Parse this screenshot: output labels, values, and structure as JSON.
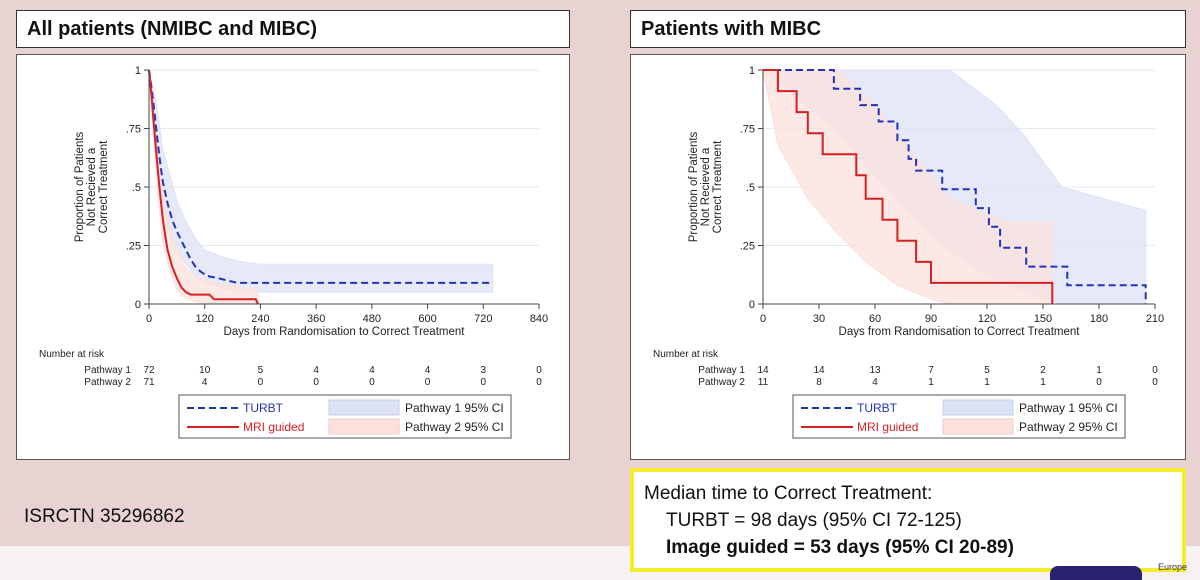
{
  "isrctn": "ISRCTN 35296862",
  "median": {
    "heading": "Median time to Correct Treatment:",
    "turbt": "TURBT = 98 days (95% CI 72-125)",
    "image_guided": "Image guided = 53 days (95% CI 20-89)"
  },
  "logo_text": "Europe",
  "colors": {
    "turbt": "#2233bb",
    "mri": "#d42020",
    "ci1": "#dde2f6",
    "ci2": "#fbe0dc"
  },
  "chart_data": [
    {
      "type": "line",
      "title": "All patients (NMIBC and MIBC)",
      "xlabel": "Days from Randomisation to Correct Treatment",
      "ylabel_lines": [
        "Proportion of Patients",
        "Not Recieved a",
        "Correct Treatment"
      ],
      "xlim": [
        0,
        840
      ],
      "ylim": [
        0,
        1
      ],
      "xticks": [
        0,
        120,
        240,
        360,
        480,
        600,
        720,
        840
      ],
      "yticks": [
        {
          "v": 0,
          "label": "0"
        },
        {
          "v": 0.25,
          "label": ".25"
        },
        {
          "v": 0.5,
          "label": ".5"
        },
        {
          "v": 0.75,
          "label": ".75"
        },
        {
          "v": 1,
          "label": "1"
        }
      ],
      "grid": true,
      "series": [
        {
          "name": "TURBT",
          "style": "dashed",
          "color": "#2233bb",
          "points": [
            [
              0,
              1
            ],
            [
              5,
              0.93
            ],
            [
              10,
              0.85
            ],
            [
              15,
              0.76
            ],
            [
              20,
              0.67
            ],
            [
              25,
              0.59
            ],
            [
              30,
              0.52
            ],
            [
              40,
              0.43
            ],
            [
              50,
              0.36
            ],
            [
              60,
              0.31
            ],
            [
              70,
              0.27
            ],
            [
              80,
              0.23
            ],
            [
              90,
              0.19
            ],
            [
              100,
              0.16
            ],
            [
              110,
              0.14
            ],
            [
              125,
              0.12
            ],
            [
              150,
              0.11
            ],
            [
              170,
              0.1
            ],
            [
              190,
              0.09
            ],
            [
              240,
              0.09
            ],
            [
              360,
              0.09
            ],
            [
              480,
              0.09
            ],
            [
              600,
              0.09
            ],
            [
              725,
              0.09
            ],
            [
              740,
              0.09
            ]
          ]
        },
        {
          "name": "MRI guided",
          "style": "solid",
          "color": "#d42020",
          "points": [
            [
              0,
              1
            ],
            [
              5,
              0.9
            ],
            [
              10,
              0.78
            ],
            [
              15,
              0.66
            ],
            [
              20,
              0.55
            ],
            [
              25,
              0.45
            ],
            [
              30,
              0.36
            ],
            [
              35,
              0.29
            ],
            [
              40,
              0.23
            ],
            [
              50,
              0.16
            ],
            [
              60,
              0.11
            ],
            [
              70,
              0.07
            ],
            [
              80,
              0.05
            ],
            [
              90,
              0.04
            ],
            [
              130,
              0.04
            ],
            [
              140,
              0.02
            ],
            [
              230,
              0.02
            ],
            [
              235,
              0
            ]
          ]
        }
      ],
      "ci_bands": [
        {
          "name": "Pathway 1 95% CI",
          "color": "#dde2f6",
          "upper": [
            [
              0,
              1
            ],
            [
              10,
              0.92
            ],
            [
              20,
              0.8
            ],
            [
              30,
              0.66
            ],
            [
              45,
              0.55
            ],
            [
              60,
              0.44
            ],
            [
              80,
              0.35
            ],
            [
              100,
              0.28
            ],
            [
              120,
              0.23
            ],
            [
              160,
              0.2
            ],
            [
              200,
              0.18
            ],
            [
              240,
              0.17
            ],
            [
              740,
              0.17
            ]
          ],
          "lower": [
            [
              0,
              1
            ],
            [
              10,
              0.78
            ],
            [
              20,
              0.56
            ],
            [
              30,
              0.4
            ],
            [
              45,
              0.3
            ],
            [
              60,
              0.23
            ],
            [
              80,
              0.17
            ],
            [
              100,
              0.12
            ],
            [
              120,
              0.09
            ],
            [
              160,
              0.07
            ],
            [
              200,
              0.05
            ],
            [
              240,
              0.05
            ],
            [
              740,
              0.05
            ]
          ]
        },
        {
          "name": "Pathway 2 95% CI",
          "color": "#fbe0dc",
          "upper": [
            [
              0,
              1
            ],
            [
              10,
              0.86
            ],
            [
              20,
              0.66
            ],
            [
              30,
              0.48
            ],
            [
              45,
              0.34
            ],
            [
              60,
              0.23
            ],
            [
              80,
              0.15
            ],
            [
              100,
              0.12
            ],
            [
              140,
              0.09
            ],
            [
              235,
              0.06
            ]
          ],
          "lower": [
            [
              0,
              1
            ],
            [
              10,
              0.7
            ],
            [
              20,
              0.45
            ],
            [
              30,
              0.26
            ],
            [
              45,
              0.14
            ],
            [
              60,
              0.06
            ],
            [
              80,
              0.02
            ],
            [
              100,
              0.01
            ],
            [
              140,
              0
            ],
            [
              235,
              0
            ]
          ]
        }
      ],
      "risk_table": {
        "title": "Number at risk",
        "rows": [
          {
            "label": "Pathway 1",
            "values": [
              "72",
              "10",
              "5",
              "4",
              "4",
              "4",
              "3",
              "0"
            ]
          },
          {
            "label": "Pathway 2",
            "values": [
              "71",
              "4",
              "0",
              "0",
              "0",
              "0",
              "0",
              "0"
            ]
          }
        ]
      },
      "legend": [
        "TURBT",
        "MRI guided",
        "Pathway 1 95% CI",
        "Pathway 2 95% CI"
      ]
    },
    {
      "type": "line",
      "title": "Patients with MIBC",
      "xlabel": "Days from Randomisation to Correct Treatment",
      "ylabel_lines": [
        "Proportion of Patients",
        "Not Recieved a",
        "Correct Treatment"
      ],
      "xlim": [
        0,
        210
      ],
      "ylim": [
        0,
        1
      ],
      "xticks": [
        0,
        30,
        60,
        90,
        120,
        150,
        180,
        210
      ],
      "yticks": [
        {
          "v": 0,
          "label": "0"
        },
        {
          "v": 0.25,
          "label": ".25"
        },
        {
          "v": 0.5,
          "label": ".5"
        },
        {
          "v": 0.75,
          "label": ".75"
        },
        {
          "v": 1,
          "label": "1"
        }
      ],
      "grid": true,
      "series": [
        {
          "name": "TURBT",
          "style": "dashed",
          "color": "#2233bb",
          "points": [
            [
              0,
              1
            ],
            [
              38,
              1
            ],
            [
              38,
              0.92
            ],
            [
              52,
              0.92
            ],
            [
              52,
              0.85
            ],
            [
              62,
              0.85
            ],
            [
              62,
              0.78
            ],
            [
              72,
              0.78
            ],
            [
              72,
              0.7
            ],
            [
              78,
              0.7
            ],
            [
              78,
              0.62
            ],
            [
              82,
              0.62
            ],
            [
              82,
              0.57
            ],
            [
              96,
              0.57
            ],
            [
              96,
              0.49
            ],
            [
              114,
              0.49
            ],
            [
              114,
              0.41
            ],
            [
              121,
              0.41
            ],
            [
              121,
              0.33
            ],
            [
              127,
              0.33
            ],
            [
              127,
              0.24
            ],
            [
              141,
              0.24
            ],
            [
              141,
              0.16
            ],
            [
              163,
              0.16
            ],
            [
              163,
              0.08
            ],
            [
              205,
              0.08
            ],
            [
              205,
              0
            ]
          ]
        },
        {
          "name": "MRI guided",
          "style": "solid",
          "color": "#d42020",
          "points": [
            [
              0,
              1
            ],
            [
              8,
              1
            ],
            [
              8,
              0.91
            ],
            [
              18,
              0.91
            ],
            [
              18,
              0.82
            ],
            [
              24,
              0.82
            ],
            [
              24,
              0.73
            ],
            [
              32,
              0.73
            ],
            [
              32,
              0.64
            ],
            [
              50,
              0.64
            ],
            [
              50,
              0.55
            ],
            [
              55,
              0.55
            ],
            [
              55,
              0.45
            ],
            [
              64,
              0.45
            ],
            [
              64,
              0.36
            ],
            [
              72,
              0.36
            ],
            [
              72,
              0.27
            ],
            [
              82,
              0.27
            ],
            [
              82,
              0.18
            ],
            [
              90,
              0.18
            ],
            [
              90,
              0.09
            ],
            [
              155,
              0.09
            ],
            [
              155,
              0
            ]
          ]
        }
      ],
      "ci_bands": [
        {
          "name": "Pathway 1 95% CI",
          "color": "#dde2f6",
          "upper": [
            [
              0,
              1
            ],
            [
              100,
              1
            ],
            [
              125,
              0.85
            ],
            [
              140,
              0.72
            ],
            [
              160,
              0.5
            ],
            [
              205,
              0.4
            ],
            [
              205,
              0
            ]
          ],
          "lower": [
            [
              0,
              1
            ],
            [
              38,
              0.75
            ],
            [
              60,
              0.55
            ],
            [
              80,
              0.38
            ],
            [
              96,
              0.25
            ],
            [
              120,
              0.12
            ],
            [
              140,
              0.06
            ],
            [
              160,
              0
            ],
            [
              205,
              0
            ]
          ]
        },
        {
          "name": "Pathway 2 95% CI",
          "color": "#fbe0dc",
          "upper": [
            [
              0,
              1
            ],
            [
              40,
              1
            ],
            [
              60,
              0.85
            ],
            [
              80,
              0.65
            ],
            [
              100,
              0.45
            ],
            [
              130,
              0.35
            ],
            [
              155,
              0.35
            ],
            [
              155,
              0
            ]
          ],
          "lower": [
            [
              0,
              1
            ],
            [
              8,
              0.68
            ],
            [
              24,
              0.45
            ],
            [
              40,
              0.3
            ],
            [
              55,
              0.18
            ],
            [
              72,
              0.08
            ],
            [
              90,
              0.02
            ],
            [
              100,
              0
            ],
            [
              155,
              0
            ]
          ]
        }
      ],
      "risk_table": {
        "title": "Number at risk",
        "rows": [
          {
            "label": "Pathway 1",
            "values": [
              "14",
              "14",
              "13",
              "7",
              "5",
              "2",
              "1",
              "0"
            ]
          },
          {
            "label": "Pathway 2",
            "values": [
              "11",
              "8",
              "4",
              "1",
              "1",
              "1",
              "0",
              "0"
            ]
          }
        ]
      },
      "legend": [
        "TURBT",
        "MRI guided",
        "Pathway 1 95% CI",
        "Pathway 2 95% CI"
      ]
    }
  ]
}
